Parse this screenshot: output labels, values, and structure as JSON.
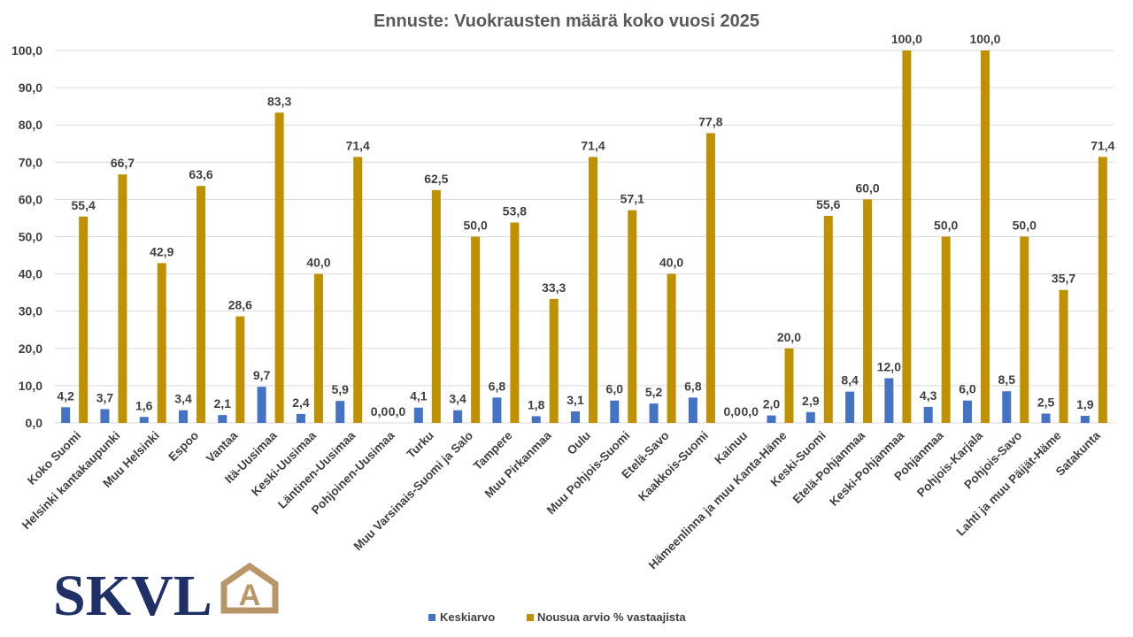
{
  "colors": {
    "series1": "#4472C4",
    "series2": "#BF9000",
    "grid": "#D9D9D9",
    "text": "#404040",
    "title": "#595959",
    "logo_navy": "#1f3066",
    "logo_gold": "#b99668"
  },
  "logo": {
    "text": "SKVL",
    "emblem_letter": "A"
  },
  "chart_data": {
    "type": "bar",
    "title": "Ennuste: Vuokrausten määrä koko vuosi 2025",
    "xlabel": "",
    "ylabel": "",
    "ylim": [
      0,
      100
    ],
    "yticks": [
      "0,0",
      "10,0",
      "20,0",
      "30,0",
      "40,0",
      "50,0",
      "60,0",
      "70,0",
      "80,0",
      "90,0",
      "100,0"
    ],
    "grid": true,
    "legend_position": "bottom",
    "categories": [
      "Koko Suomi",
      "Helsinki kantakaupunki",
      "Muu Helsinki",
      "Espoo",
      "Vantaa",
      "Itä-Uusimaa",
      "Keski-Uusimaa",
      "Läntinen-Uusimaa",
      "Pohjoinen-Uusimaa",
      "Turku",
      "Muu Varsinais-Suomi ja Salo",
      "Tampere",
      "Muu Pirkanmaa",
      "Oulu",
      "Muu Pohjois-Suomi",
      "Etelä-Savo",
      "Kaakkois-Suomi",
      "Kainuu",
      "Hämeenlinna ja muu Kanta-Häme",
      "Keski-Suomi",
      "Etelä-Pohjanmaa",
      "Keski-Pohjanmaa",
      "Pohjanmaa",
      "Pohjois-Karjala",
      "Pohjois-Savo",
      "Lahti ja muu Päijät-Häme",
      "Satakunta"
    ],
    "series": [
      {
        "name": "Keskiarvo",
        "values": [
          4.2,
          3.7,
          1.6,
          3.4,
          2.1,
          9.7,
          2.4,
          5.9,
          0.0,
          4.1,
          3.4,
          6.8,
          1.8,
          3.1,
          6.0,
          5.2,
          6.8,
          0.0,
          2.0,
          2.9,
          8.4,
          12.0,
          4.3,
          6.0,
          8.5,
          2.5,
          1.9
        ],
        "labels": [
          "4,2",
          "3,7",
          "1,6",
          "3,4",
          "2,1",
          "9,7",
          "2,4",
          "5,9",
          "0,0",
          "4,1",
          "3,4",
          "6,8",
          "1,8",
          "3,1",
          "6,0",
          "5,2",
          "6,8",
          "0,0",
          "2,0",
          "2,9",
          "8,4",
          "12,0",
          "4,3",
          "6,0",
          "8,5",
          "2,5",
          "1,9"
        ]
      },
      {
        "name": "Nousua arvio % vastaajista",
        "values": [
          55.4,
          66.7,
          42.9,
          63.6,
          28.6,
          83.3,
          40.0,
          71.4,
          0.0,
          62.5,
          50.0,
          53.8,
          33.3,
          71.4,
          57.1,
          40.0,
          77.8,
          0.0,
          20.0,
          55.6,
          60.0,
          100.0,
          50.0,
          100.0,
          50.0,
          35.7,
          71.4
        ],
        "labels": [
          "55,4",
          "66,7",
          "42,9",
          "63,6",
          "28,6",
          "83,3",
          "40,0",
          "71,4",
          "0,0",
          "62,5",
          "50,0",
          "53,8",
          "33,3",
          "71,4",
          "57,1",
          "40,0",
          "77,8",
          "0,0",
          "20,0",
          "55,6",
          "60,0",
          "100,0",
          "50,0",
          "100,0",
          "50,0",
          "35,7",
          "71,4"
        ]
      }
    ]
  }
}
